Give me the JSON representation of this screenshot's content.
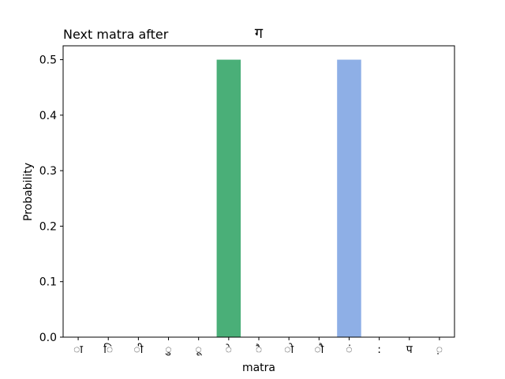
{
  "chart_data": {
    "type": "bar",
    "title_left": "Next matra after",
    "title_center": "ग",
    "xlabel": "matra",
    "ylabel": "Probability",
    "categories": [
      "ा",
      "ि",
      "ी",
      "ु",
      "ू",
      "े",
      "ै",
      "ो",
      "ौ",
      "ं",
      ":",
      "प",
      "़"
    ],
    "values": [
      0,
      0,
      0,
      0,
      0,
      0.5,
      0,
      0,
      0,
      0.5,
      0,
      0,
      0
    ],
    "colors": [
      "#4aaf78",
      "#4aaf78",
      "#4aaf78",
      "#4aaf78",
      "#4aaf78",
      "#4aaf78",
      "#4aaf78",
      "#4aaf78",
      "#4aaf78",
      "#8eafe6",
      "#8eafe6",
      "#8eafe6",
      "#8eafe6"
    ],
    "ylim": [
      0,
      0.525
    ],
    "yticks": [
      "0.0",
      "0.1",
      "0.2",
      "0.3",
      "0.4",
      "0.5"
    ],
    "grid": false
  }
}
